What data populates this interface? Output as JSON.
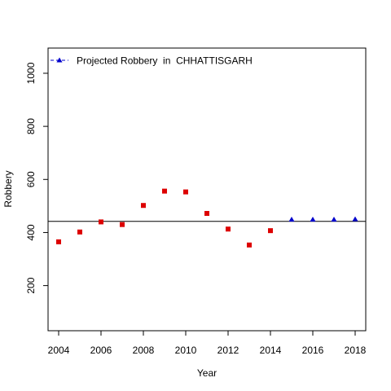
{
  "chart_data": {
    "type": "scatter",
    "title": "",
    "xlabel": "Year",
    "ylabel": "Robbery",
    "xlim": [
      2003.5,
      2018.5
    ],
    "ylim": [
      30,
      1095
    ],
    "x_ticks": [
      2004,
      2006,
      2008,
      2010,
      2012,
      2014,
      2016,
      2018
    ],
    "y_ticks": [
      200,
      400,
      600,
      800,
      1000
    ],
    "grid": false,
    "legend_position": "top-left",
    "legend_label": "Projected Robbery  in  CHHATTISGARH",
    "horizontal_line": 442,
    "series": [
      {
        "values": [
          {
            "x": 2004,
            "y": 365
          },
          {
            "x": 2005,
            "y": 402
          },
          {
            "x": 2006,
            "y": 440
          },
          {
            "x": 2007,
            "y": 430
          },
          {
            "x": 2008,
            "y": 502
          },
          {
            "x": 2009,
            "y": 556
          },
          {
            "x": 2010,
            "y": 553
          },
          {
            "x": 2011,
            "y": 472
          },
          {
            "x": 2012,
            "y": 413
          },
          {
            "x": 2013,
            "y": 353
          },
          {
            "x": 2014,
            "y": 407
          }
        ],
        "color": "#dd0000",
        "marker": "square"
      },
      {
        "name": "Projected Robbery  in  CHHATTISGARH",
        "values": [
          {
            "x": 2015,
            "y": 449
          },
          {
            "x": 2016,
            "y": 449
          },
          {
            "x": 2017,
            "y": 449
          },
          {
            "x": 2018,
            "y": 450
          }
        ],
        "color": "#0000cc",
        "marker": "triangle"
      }
    ]
  }
}
